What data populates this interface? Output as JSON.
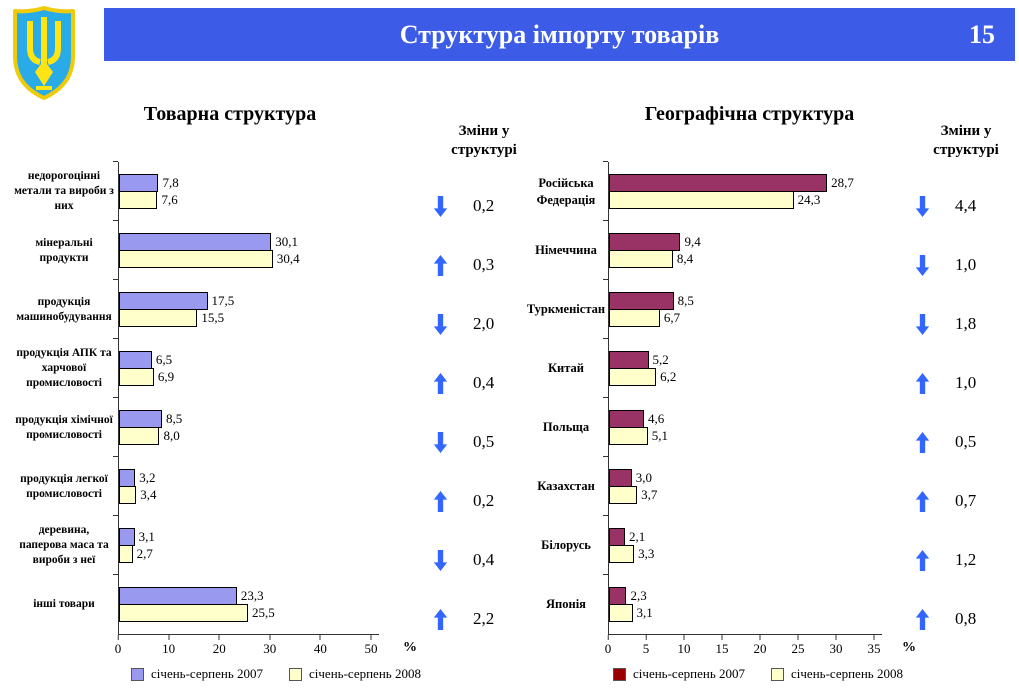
{
  "slide": {
    "title": "Структура імпорту товарів",
    "page_number": "15",
    "emblem": "ukraine-coat-of-arms",
    "colors": {
      "header": "#3C5BE6",
      "arrow": "#3366FF",
      "emblem_blue": "#29ABE8",
      "emblem_yellow": "#FFE414"
    }
  },
  "chart_data": [
    {
      "type": "bar",
      "orientation": "horizontal",
      "title": "Товарна структура",
      "axis_unit": "%",
      "xlim": [
        0,
        50
      ],
      "ticks": [
        "0",
        "10",
        "20",
        "30",
        "40",
        "50"
      ],
      "grid": false,
      "legend_position": "bottom",
      "categories": [
        "недорогоцінні метали та вироби з них",
        "мінеральні продукти",
        "продукція машинобудування",
        "продукція АПК та харчової промисловості",
        "продукція хімічної промисловості",
        "продукція легкої промисловості",
        "деревина, паперова маса та вироби з неї",
        "інші товари"
      ],
      "series": [
        {
          "name": "січень-серпень 2007",
          "color": "#9999F0",
          "legend_color": "#9999F0",
          "values": [
            "7,8",
            "30,1",
            "17,5",
            "6,5",
            "8,5",
            "3,2",
            "3,1",
            "23,3"
          ]
        },
        {
          "name": "січень-серпень 2008",
          "color": "#FFFFCC",
          "legend_color": "#FFFFCC",
          "values": [
            "7,6",
            "30,4",
            "15,5",
            "6,9",
            "8,0",
            "3,4",
            "2,7",
            "25,5"
          ]
        }
      ],
      "changes": {
        "header": "Зміни у\nструктурі",
        "items": [
          {
            "direction": "down",
            "value": "0,2"
          },
          {
            "direction": "up",
            "value": "0,3"
          },
          {
            "direction": "down",
            "value": "2,0"
          },
          {
            "direction": "up",
            "value": "0,4"
          },
          {
            "direction": "down",
            "value": "0,5"
          },
          {
            "direction": "up",
            "value": "0,2"
          },
          {
            "direction": "down",
            "value": "0,4"
          },
          {
            "direction": "up",
            "value": "2,2"
          }
        ]
      }
    },
    {
      "type": "bar",
      "orientation": "horizontal",
      "title": "Географічна структура",
      "axis_unit": "%",
      "xlim": [
        0,
        35
      ],
      "ticks": [
        "0",
        "5",
        "10",
        "15",
        "20",
        "25",
        "30",
        "35"
      ],
      "grid": false,
      "legend_position": "bottom",
      "categories": [
        "Російська Федерація",
        "Німеччина",
        "Туркменістан",
        "Китай",
        "Польща",
        "Казахстан",
        "Білорусь",
        "Японія"
      ],
      "series": [
        {
          "name": "січень-серпень 2007",
          "color": "#993366",
          "legend_color": "#990000",
          "values": [
            "28,7",
            "9,4",
            "8,5",
            "5,2",
            "4,6",
            "3,0",
            "2,1",
            "2,3"
          ]
        },
        {
          "name": "січень-серпень 2008",
          "color": "#FFFFCC",
          "legend_color": "#FFFFCC",
          "values": [
            "24,3",
            "8,4",
            "6,7",
            "6,2",
            "5,1",
            "3,7",
            "3,3",
            "3,1"
          ]
        }
      ],
      "changes": {
        "header": "Зміни у\nструктурі",
        "items": [
          {
            "direction": "down",
            "value": "4,4"
          },
          {
            "direction": "down",
            "value": "1,0"
          },
          {
            "direction": "down",
            "value": "1,8"
          },
          {
            "direction": "up",
            "value": "1,0"
          },
          {
            "direction": "up",
            "value": "0,5"
          },
          {
            "direction": "up",
            "value": "0,7"
          },
          {
            "direction": "up",
            "value": "1,2"
          },
          {
            "direction": "up",
            "value": "0,8"
          }
        ]
      }
    }
  ]
}
